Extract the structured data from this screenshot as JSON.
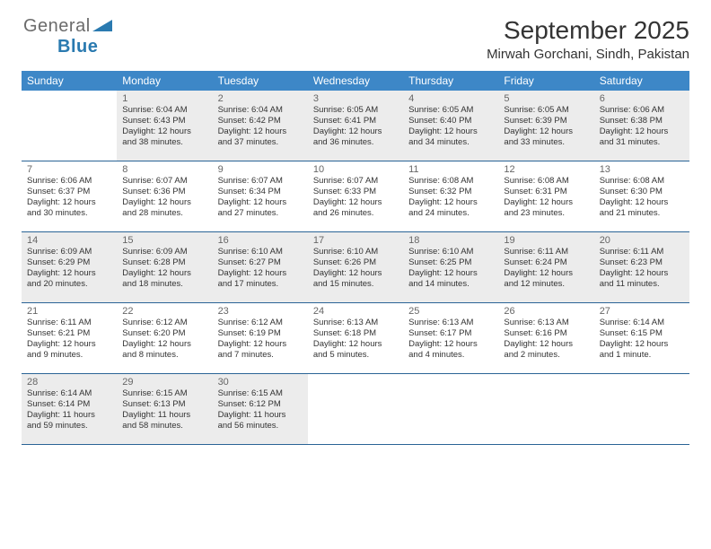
{
  "logo": {
    "general": "General",
    "blue": "Blue"
  },
  "title": "September 2025",
  "location": "Mirwah Gorchani, Sindh, Pakistan",
  "colors": {
    "header_bg": "#3d87c7",
    "header_text": "#ffffff",
    "border": "#2a6496",
    "shade": "#ececec",
    "logo_general": "#6b6b6b",
    "logo_blue": "#2a7ab0"
  },
  "day_labels": [
    "Sunday",
    "Monday",
    "Tuesday",
    "Wednesday",
    "Thursday",
    "Friday",
    "Saturday"
  ],
  "weeks": [
    [
      {
        "n": "",
        "sunrise": "",
        "sunset": "",
        "daylight": ""
      },
      {
        "n": "1",
        "sunrise": "Sunrise: 6:04 AM",
        "sunset": "Sunset: 6:43 PM",
        "daylight": "Daylight: 12 hours and 38 minutes."
      },
      {
        "n": "2",
        "sunrise": "Sunrise: 6:04 AM",
        "sunset": "Sunset: 6:42 PM",
        "daylight": "Daylight: 12 hours and 37 minutes."
      },
      {
        "n": "3",
        "sunrise": "Sunrise: 6:05 AM",
        "sunset": "Sunset: 6:41 PM",
        "daylight": "Daylight: 12 hours and 36 minutes."
      },
      {
        "n": "4",
        "sunrise": "Sunrise: 6:05 AM",
        "sunset": "Sunset: 6:40 PM",
        "daylight": "Daylight: 12 hours and 34 minutes."
      },
      {
        "n": "5",
        "sunrise": "Sunrise: 6:05 AM",
        "sunset": "Sunset: 6:39 PM",
        "daylight": "Daylight: 12 hours and 33 minutes."
      },
      {
        "n": "6",
        "sunrise": "Sunrise: 6:06 AM",
        "sunset": "Sunset: 6:38 PM",
        "daylight": "Daylight: 12 hours and 31 minutes."
      }
    ],
    [
      {
        "n": "7",
        "sunrise": "Sunrise: 6:06 AM",
        "sunset": "Sunset: 6:37 PM",
        "daylight": "Daylight: 12 hours and 30 minutes."
      },
      {
        "n": "8",
        "sunrise": "Sunrise: 6:07 AM",
        "sunset": "Sunset: 6:36 PM",
        "daylight": "Daylight: 12 hours and 28 minutes."
      },
      {
        "n": "9",
        "sunrise": "Sunrise: 6:07 AM",
        "sunset": "Sunset: 6:34 PM",
        "daylight": "Daylight: 12 hours and 27 minutes."
      },
      {
        "n": "10",
        "sunrise": "Sunrise: 6:07 AM",
        "sunset": "Sunset: 6:33 PM",
        "daylight": "Daylight: 12 hours and 26 minutes."
      },
      {
        "n": "11",
        "sunrise": "Sunrise: 6:08 AM",
        "sunset": "Sunset: 6:32 PM",
        "daylight": "Daylight: 12 hours and 24 minutes."
      },
      {
        "n": "12",
        "sunrise": "Sunrise: 6:08 AM",
        "sunset": "Sunset: 6:31 PM",
        "daylight": "Daylight: 12 hours and 23 minutes."
      },
      {
        "n": "13",
        "sunrise": "Sunrise: 6:08 AM",
        "sunset": "Sunset: 6:30 PM",
        "daylight": "Daylight: 12 hours and 21 minutes."
      }
    ],
    [
      {
        "n": "14",
        "sunrise": "Sunrise: 6:09 AM",
        "sunset": "Sunset: 6:29 PM",
        "daylight": "Daylight: 12 hours and 20 minutes."
      },
      {
        "n": "15",
        "sunrise": "Sunrise: 6:09 AM",
        "sunset": "Sunset: 6:28 PM",
        "daylight": "Daylight: 12 hours and 18 minutes."
      },
      {
        "n": "16",
        "sunrise": "Sunrise: 6:10 AM",
        "sunset": "Sunset: 6:27 PM",
        "daylight": "Daylight: 12 hours and 17 minutes."
      },
      {
        "n": "17",
        "sunrise": "Sunrise: 6:10 AM",
        "sunset": "Sunset: 6:26 PM",
        "daylight": "Daylight: 12 hours and 15 minutes."
      },
      {
        "n": "18",
        "sunrise": "Sunrise: 6:10 AM",
        "sunset": "Sunset: 6:25 PM",
        "daylight": "Daylight: 12 hours and 14 minutes."
      },
      {
        "n": "19",
        "sunrise": "Sunrise: 6:11 AM",
        "sunset": "Sunset: 6:24 PM",
        "daylight": "Daylight: 12 hours and 12 minutes."
      },
      {
        "n": "20",
        "sunrise": "Sunrise: 6:11 AM",
        "sunset": "Sunset: 6:23 PM",
        "daylight": "Daylight: 12 hours and 11 minutes."
      }
    ],
    [
      {
        "n": "21",
        "sunrise": "Sunrise: 6:11 AM",
        "sunset": "Sunset: 6:21 PM",
        "daylight": "Daylight: 12 hours and 9 minutes."
      },
      {
        "n": "22",
        "sunrise": "Sunrise: 6:12 AM",
        "sunset": "Sunset: 6:20 PM",
        "daylight": "Daylight: 12 hours and 8 minutes."
      },
      {
        "n": "23",
        "sunrise": "Sunrise: 6:12 AM",
        "sunset": "Sunset: 6:19 PM",
        "daylight": "Daylight: 12 hours and 7 minutes."
      },
      {
        "n": "24",
        "sunrise": "Sunrise: 6:13 AM",
        "sunset": "Sunset: 6:18 PM",
        "daylight": "Daylight: 12 hours and 5 minutes."
      },
      {
        "n": "25",
        "sunrise": "Sunrise: 6:13 AM",
        "sunset": "Sunset: 6:17 PM",
        "daylight": "Daylight: 12 hours and 4 minutes."
      },
      {
        "n": "26",
        "sunrise": "Sunrise: 6:13 AM",
        "sunset": "Sunset: 6:16 PM",
        "daylight": "Daylight: 12 hours and 2 minutes."
      },
      {
        "n": "27",
        "sunrise": "Sunrise: 6:14 AM",
        "sunset": "Sunset: 6:15 PM",
        "daylight": "Daylight: 12 hours and 1 minute."
      }
    ],
    [
      {
        "n": "28",
        "sunrise": "Sunrise: 6:14 AM",
        "sunset": "Sunset: 6:14 PM",
        "daylight": "Daylight: 11 hours and 59 minutes."
      },
      {
        "n": "29",
        "sunrise": "Sunrise: 6:15 AM",
        "sunset": "Sunset: 6:13 PM",
        "daylight": "Daylight: 11 hours and 58 minutes."
      },
      {
        "n": "30",
        "sunrise": "Sunrise: 6:15 AM",
        "sunset": "Sunset: 6:12 PM",
        "daylight": "Daylight: 11 hours and 56 minutes."
      },
      {
        "n": "",
        "sunrise": "",
        "sunset": "",
        "daylight": ""
      },
      {
        "n": "",
        "sunrise": "",
        "sunset": "",
        "daylight": ""
      },
      {
        "n": "",
        "sunrise": "",
        "sunset": "",
        "daylight": ""
      },
      {
        "n": "",
        "sunrise": "",
        "sunset": "",
        "daylight": ""
      }
    ]
  ]
}
